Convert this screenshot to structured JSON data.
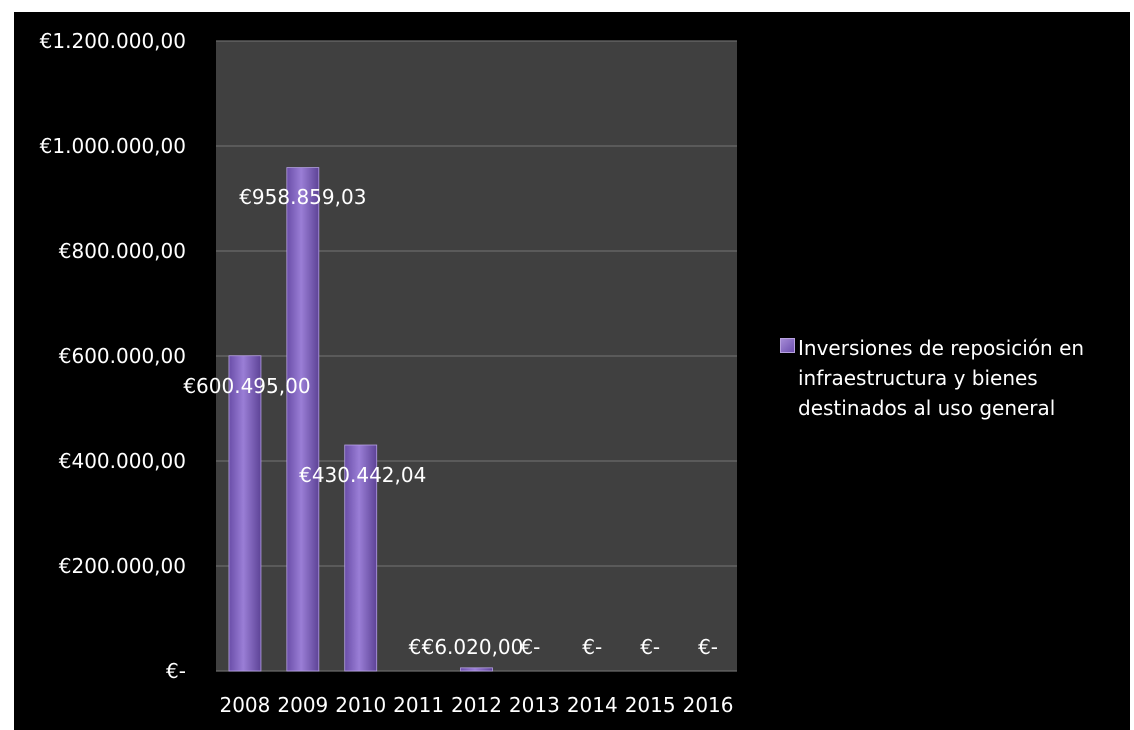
{
  "chart_data": {
    "type": "bar",
    "title": "",
    "xlabel": "",
    "ylabel": "",
    "categories": [
      "2008",
      "2009",
      "2010",
      "2011",
      "2012",
      "2013",
      "2014",
      "2015",
      "2016"
    ],
    "series": [
      {
        "name": "Inversiones de reposición en infraestructura y bienes destinados al uso general",
        "values": [
          600495.0,
          958859.03,
          430442.04,
          0,
          6020.0,
          0,
          0,
          0,
          0
        ],
        "data_labels": [
          "€600.495,00",
          "€958.859,03",
          "€430.442,04",
          "€-",
          "€6.020,00",
          "€-",
          "€-",
          "€-",
          "€-"
        ]
      }
    ],
    "ylim": [
      0,
      1200000
    ],
    "yticks": [
      0,
      200000,
      400000,
      600000,
      800000,
      1000000,
      1200000
    ],
    "ytick_labels": [
      "€-",
      "€200.000,00",
      "€400.000,00",
      "€600.000,00",
      "€800.000,00",
      "€1.000.000,00",
      "€1.200.000,00"
    ],
    "grid": true,
    "legend_position": "right",
    "colors": {
      "background": "#000000",
      "plot_background": "#404040",
      "bar": "#8a6cc8",
      "gridline": "#6a6a6a",
      "text": "#ffffff"
    }
  }
}
